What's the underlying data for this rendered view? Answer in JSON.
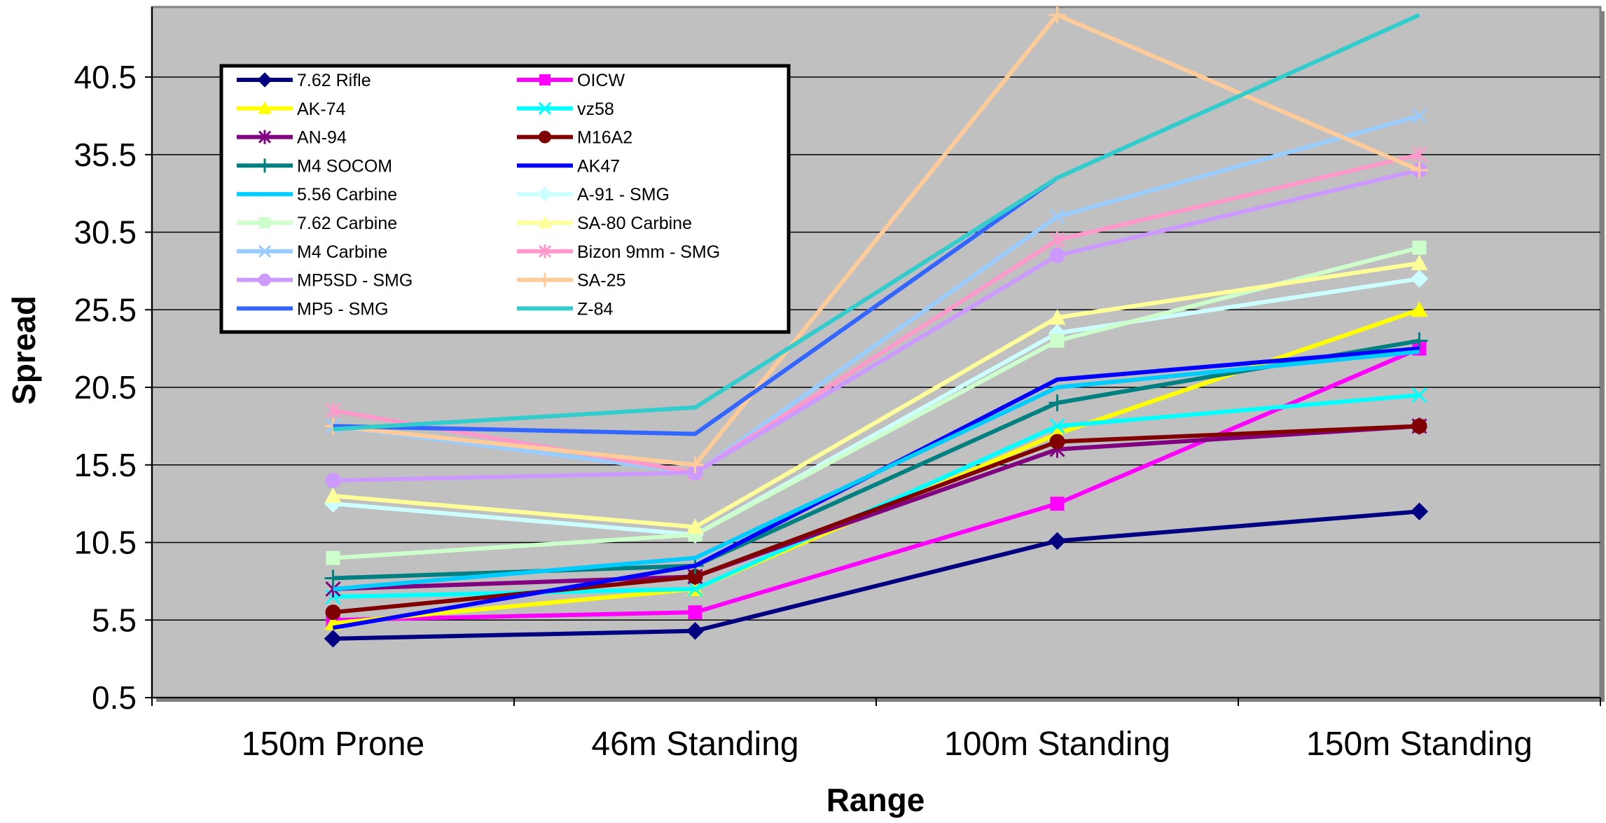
{
  "chart_data": {
    "type": "line",
    "title": "",
    "xlabel": "Range",
    "ylabel": "Spread",
    "categories": [
      "150m Prone",
      "46m Standing",
      "100m Standing",
      "150m Standing"
    ],
    "ylim": [
      0.5,
      40.5
    ],
    "yticks": [
      "0.5",
      "5.5",
      "10.5",
      "15.5",
      "20.5",
      "25.5",
      "30.5",
      "35.5",
      "40.5"
    ],
    "grid": "horizontal major gridlines",
    "plot_background": "#c0c0c0",
    "legend_position": "top-left inside plot, two columns",
    "series": [
      {
        "name": "7.62 Rifle",
        "color": "#000080",
        "marker": "diamond",
        "values": [
          4.3,
          4.8,
          10.6,
          12.5
        ]
      },
      {
        "name": "OICW",
        "color": "#ff00ff",
        "marker": "square",
        "values": [
          5.5,
          6.0,
          13.0,
          23.0
        ]
      },
      {
        "name": "AK-74",
        "color": "#ffff00",
        "marker": "triangle",
        "values": [
          5.3,
          7.5,
          17.5,
          25.5
        ]
      },
      {
        "name": "vz58",
        "color": "#00ffff",
        "marker": "x",
        "values": [
          7.0,
          7.5,
          18.0,
          20.0
        ]
      },
      {
        "name": "AN-94",
        "color": "#800080",
        "marker": "star",
        "values": [
          7.5,
          8.3,
          16.5,
          18.0
        ]
      },
      {
        "name": "M16A2",
        "color": "#800000",
        "marker": "circle",
        "values": [
          6.0,
          8.3,
          17.0,
          18.0
        ]
      },
      {
        "name": "M4 SOCOM",
        "color": "#008080",
        "marker": "plus",
        "values": [
          8.2,
          9.0,
          19.5,
          23.5
        ]
      },
      {
        "name": "AK47",
        "color": "#0000ff",
        "marker": "none",
        "values": [
          5.0,
          9.0,
          21.0,
          23.0
        ]
      },
      {
        "name": "5.56 Carbine",
        "color": "#00ccff",
        "marker": "none",
        "values": [
          7.5,
          9.5,
          20.5,
          22.8
        ]
      },
      {
        "name": "A-91 - SMG",
        "color": "#ccffff",
        "marker": "diamond",
        "values": [
          13.0,
          11.0,
          24.0,
          27.5
        ]
      },
      {
        "name": "7.62 Carbine",
        "color": "#ccffcc",
        "marker": "square",
        "values": [
          9.5,
          11.0,
          23.5,
          29.5
        ]
      },
      {
        "name": "SA-80 Carbine",
        "color": "#ffff99",
        "marker": "triangle",
        "values": [
          13.5,
          11.5,
          25.0,
          28.5
        ]
      },
      {
        "name": "M4 Carbine",
        "color": "#99ccff",
        "marker": "x",
        "values": [
          18.0,
          15.0,
          31.5,
          38.0
        ]
      },
      {
        "name": "Bizon 9mm - SMG",
        "color": "#ff99cc",
        "marker": "star",
        "values": [
          19.0,
          15.0,
          30.0,
          35.5
        ]
      },
      {
        "name": "MP5SD - SMG",
        "color": "#cc99ff",
        "marker": "circle",
        "values": [
          14.5,
          15.0,
          29.0,
          34.5
        ]
      },
      {
        "name": "SA-25",
        "color": "#ffcc99",
        "marker": "plus",
        "values": [
          18.0,
          15.5,
          44.5,
          34.5
        ]
      },
      {
        "name": "MP5 - SMG",
        "color": "#3366ff",
        "marker": "none",
        "values": [
          18.0,
          17.5,
          34.0,
          null
        ]
      },
      {
        "name": "Z-84",
        "color": "#33cccc",
        "marker": "none",
        "values": [
          17.8,
          19.2,
          34.0,
          44.5
        ]
      }
    ]
  }
}
